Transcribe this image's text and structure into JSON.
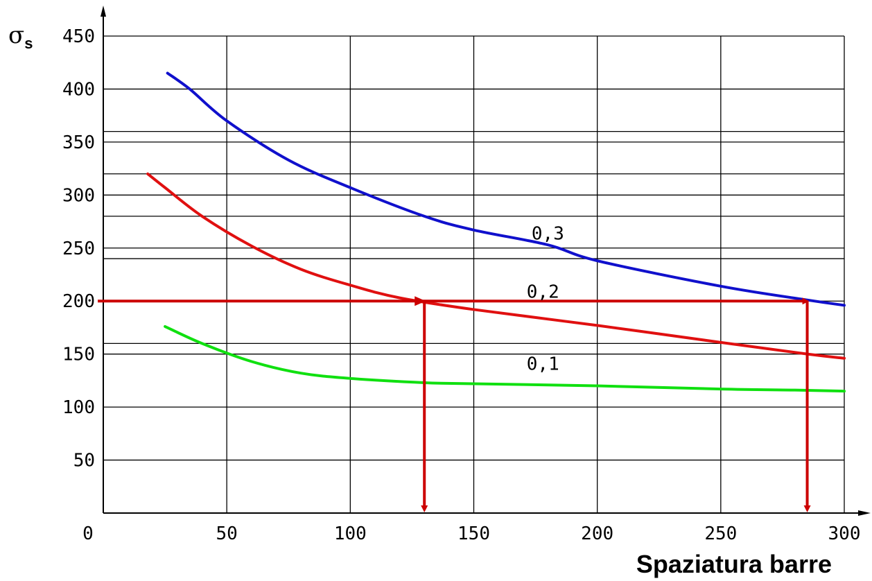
{
  "chart_data": {
    "type": "line",
    "title": "",
    "xlabel": "Spaziatura barre",
    "ylabel": {
      "symbol": "σ",
      "subscript": "s"
    },
    "xlim": [
      0,
      300
    ],
    "ylim": [
      0,
      450
    ],
    "x_ticks": [
      0,
      50,
      100,
      150,
      200,
      250,
      300
    ],
    "y_ticks": [
      50,
      100,
      150,
      200,
      250,
      300,
      350,
      400,
      450
    ],
    "minor_gridlines_y": [
      160,
      240,
      280,
      320,
      360
    ],
    "grid": true,
    "series": [
      {
        "name": "0,3",
        "color": "#1010cc",
        "points": [
          [
            26,
            415
          ],
          [
            35,
            400
          ],
          [
            50,
            370
          ],
          [
            75,
            333
          ],
          [
            100,
            307
          ],
          [
            130,
            280
          ],
          [
            150,
            267
          ],
          [
            180,
            253
          ],
          [
            200,
            238
          ],
          [
            250,
            214
          ],
          [
            285,
            201
          ],
          [
            300,
            196
          ]
        ]
      },
      {
        "name": "0,2",
        "color": "#e01010",
        "points": [
          [
            18,
            320
          ],
          [
            25,
            307
          ],
          [
            40,
            280
          ],
          [
            60,
            252
          ],
          [
            80,
            230
          ],
          [
            100,
            215
          ],
          [
            120,
            203
          ],
          [
            150,
            192
          ],
          [
            200,
            177
          ],
          [
            250,
            161
          ],
          [
            285,
            150
          ],
          [
            300,
            146
          ]
        ]
      },
      {
        "name": "0,1",
        "color": "#10e010",
        "points": [
          [
            25,
            176
          ],
          [
            40,
            160
          ],
          [
            60,
            143
          ],
          [
            80,
            132
          ],
          [
            100,
            127
          ],
          [
            130,
            123
          ],
          [
            150,
            122
          ],
          [
            200,
            120
          ],
          [
            250,
            117
          ],
          [
            280,
            116
          ],
          [
            300,
            115
          ]
        ]
      }
    ],
    "annotations": {
      "horizontal_line_y": 200,
      "drop_lines_x": [
        130,
        285
      ],
      "color": "#cc0000"
    }
  }
}
